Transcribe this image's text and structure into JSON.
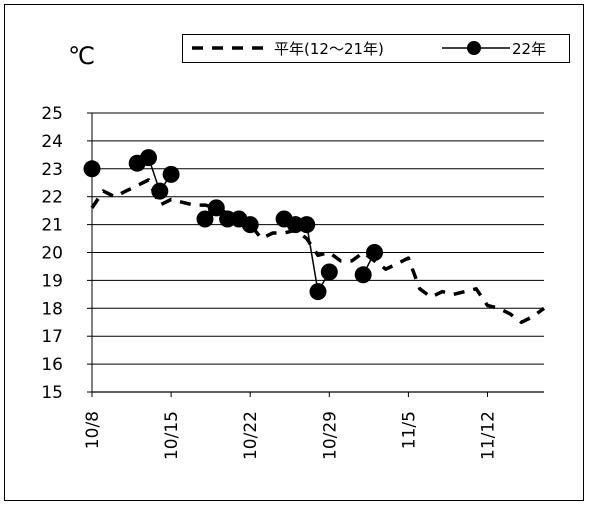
{
  "chart_data": {
    "type": "line",
    "unit_label": "℃",
    "y_ticks": [
      "25",
      "24",
      "23",
      "22",
      "21",
      "20",
      "19",
      "18",
      "17",
      "16",
      "15"
    ],
    "ylim": [
      15,
      25
    ],
    "x_tick_labels": [
      "10/8",
      "10/15",
      "10/22",
      "10/29",
      "11/5",
      "11/12"
    ],
    "x_tick_days": [
      0,
      7,
      14,
      21,
      28,
      35
    ],
    "xlim": [
      0,
      40
    ],
    "grid": true,
    "legend_position": "top-right",
    "series": [
      {
        "name": "平年(12～21年)",
        "style": "dashed",
        "color": "#000000",
        "x": [
          0,
          1,
          2,
          3,
          4,
          5,
          6,
          7,
          8,
          9,
          10,
          11,
          12,
          13,
          14,
          15,
          16,
          17,
          18,
          19,
          20,
          21,
          22,
          23,
          24,
          25,
          26,
          27,
          28,
          29,
          30,
          31,
          32,
          33,
          34,
          35,
          36,
          37,
          38,
          39,
          40
        ],
        "values": [
          21.6,
          22.2,
          22.0,
          22.2,
          22.4,
          22.6,
          21.7,
          21.9,
          21.8,
          21.7,
          21.7,
          21.6,
          21.4,
          21.0,
          21.0,
          20.5,
          20.7,
          20.7,
          20.8,
          20.5,
          19.9,
          20.0,
          19.7,
          19.7,
          20.0,
          19.7,
          19.4,
          19.6,
          19.8,
          18.7,
          18.4,
          18.6,
          18.5,
          18.6,
          18.7,
          18.1,
          18.0,
          17.8,
          17.5,
          17.7,
          18.0
        ]
      },
      {
        "name": "22年",
        "style": "solid-marker",
        "color": "#000000",
        "segments": [
          {
            "x": [
              0
            ],
            "values": [
              23.0
            ]
          },
          {
            "x": [
              4,
              5,
              6,
              7
            ],
            "values": [
              23.2,
              23.4,
              22.2,
              22.8
            ]
          },
          {
            "x": [
              10,
              11,
              12,
              13,
              14
            ],
            "values": [
              21.2,
              21.6,
              21.2,
              21.2,
              21.0
            ]
          },
          {
            "x": [
              17,
              18,
              19,
              20,
              21
            ],
            "values": [
              21.2,
              21.0,
              21.0,
              18.6,
              19.3
            ]
          },
          {
            "x": [
              24,
              25
            ],
            "values": [
              19.2,
              20.0
            ]
          }
        ]
      }
    ]
  }
}
